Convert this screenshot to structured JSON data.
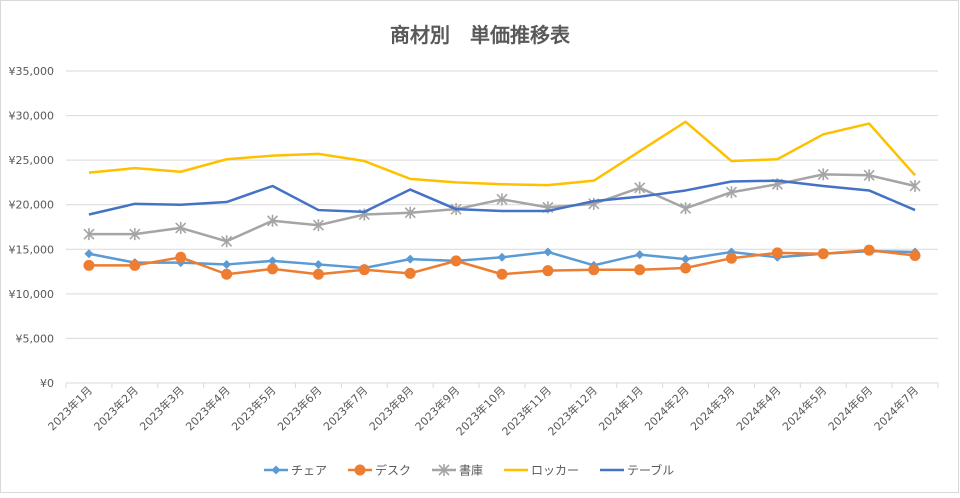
{
  "chart_data": {
    "type": "line",
    "title": "商材別　単価推移表",
    "xlabel": "",
    "ylabel": "",
    "ylim": [
      0,
      35000
    ],
    "y_ticks": [
      "¥0",
      "¥5,000",
      "¥10,000",
      "¥15,000",
      "¥20,000",
      "¥25,000",
      "¥30,000",
      "¥35,000"
    ],
    "y_tick_values": [
      0,
      5000,
      10000,
      15000,
      20000,
      25000,
      30000,
      35000
    ],
    "grid": true,
    "legend_position": "bottom",
    "categories": [
      "2023年1月",
      "2023年2月",
      "2023年3月",
      "2023年4月",
      "2023年5月",
      "2023年6月",
      "2023年7月",
      "2023年8月",
      "2023年9月",
      "2023年10月",
      "2023年11月",
      "2023年12月",
      "2024年1月",
      "2024年2月",
      "2024年3月",
      "2024年4月",
      "2024年5月",
      "2024年6月",
      "2024年7月"
    ],
    "series": [
      {
        "name": "チェア",
        "color": "#5B9BD5",
        "marker": "diamond",
        "values": [
          14500,
          13500,
          13500,
          13300,
          13700,
          13300,
          12900,
          13900,
          13700,
          14100,
          14700,
          13200,
          14400,
          13900,
          14700,
          14100,
          14500,
          14800,
          14700
        ]
      },
      {
        "name": "デスク",
        "color": "#ED7D31",
        "marker": "circle",
        "values": [
          13200,
          13200,
          14100,
          12200,
          12800,
          12200,
          12700,
          12300,
          13700,
          12200,
          12600,
          12700,
          12700,
          12900,
          14000,
          14600,
          14500,
          14900,
          14300
        ]
      },
      {
        "name": "書庫",
        "color": "#A5A5A5",
        "marker": "star",
        "values": [
          16700,
          16700,
          17400,
          15900,
          18200,
          17700,
          18900,
          19100,
          19500,
          20600,
          19700,
          20100,
          21900,
          19600,
          21400,
          22300,
          23400,
          23300,
          22100
        ]
      },
      {
        "name": "ロッカー",
        "color": "#FFC000",
        "marker": "none",
        "values": [
          23600,
          24100,
          23700,
          25100,
          25500,
          25700,
          24900,
          22900,
          22500,
          22300,
          22200,
          22700,
          26000,
          29300,
          24900,
          25100,
          27900,
          29100,
          23300
        ]
      },
      {
        "name": "テーブル",
        "color": "#4472C4",
        "marker": "none",
        "values": [
          18900,
          20100,
          20000,
          20300,
          22100,
          19400,
          19200,
          21700,
          19500,
          19300,
          19300,
          20400,
          20900,
          21600,
          22600,
          22700,
          22100,
          21600,
          19400
        ]
      }
    ]
  }
}
